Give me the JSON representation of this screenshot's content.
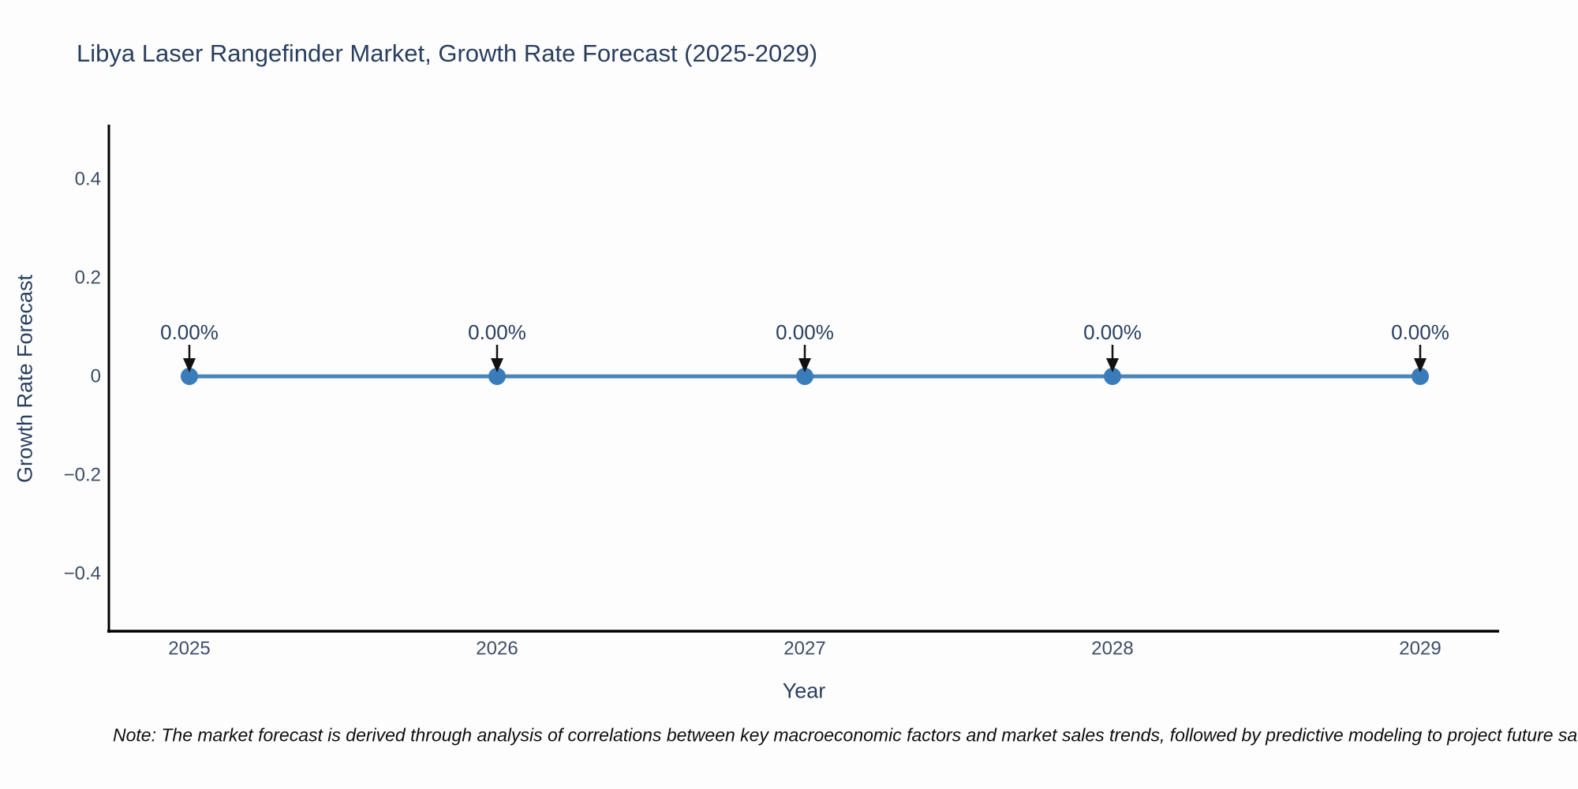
{
  "title": "Libya Laser Rangefinder Market, Growth Rate Forecast (2025-2029)",
  "note": "Note: The market forecast is derived through analysis of correlations between key macroeconomic factors and market sales trends, followed by predictive modeling to project future sa",
  "chart_data": {
    "type": "line",
    "title": "Libya Laser Rangefinder Market, Growth Rate Forecast (2025-2029)",
    "xlabel": "Year",
    "ylabel": "Growth Rate Forecast",
    "categories": [
      "2025",
      "2026",
      "2027",
      "2028",
      "2029"
    ],
    "values": [
      0,
      0,
      0,
      0,
      0
    ],
    "point_labels": [
      "0.00%",
      "0.00%",
      "0.00%",
      "0.00%",
      "0.00%"
    ],
    "y_ticks": [
      "0.4",
      "0.2",
      "0",
      "−0.2",
      "−0.4"
    ],
    "y_tick_values": [
      0.4,
      0.2,
      0,
      -0.2,
      -0.4
    ],
    "ylim": [
      -0.52,
      0.52
    ],
    "grid": false,
    "legend_position": "none",
    "line_color": "#4a86b8",
    "marker_color": "#3a7cba",
    "arrow_color": "#111111",
    "axis_color": "#000000",
    "text_color": "#2a3f5f"
  }
}
